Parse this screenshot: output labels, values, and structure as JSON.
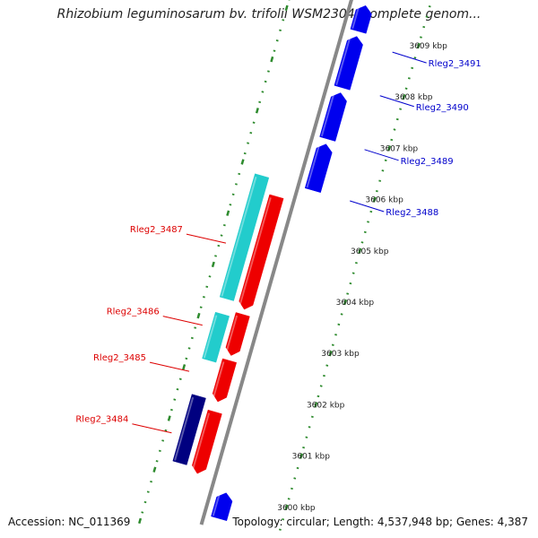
{
  "title": "Rhizobium leguminosarum bv. trifolii WSM2304, complete genom...",
  "accession": "Accession: NC_011369",
  "summary": "Topology: circular; Length: 4,537,948 bp; Genes: 4,387",
  "colors": {
    "backbone": "#888888",
    "tick_dots": "#2e8b2e",
    "forward_gene": "#0000ee",
    "reverse_gene": "#ee0000",
    "cyan_feature": "#22cccc",
    "navy_feature": "#000080",
    "forward_label": "#0000cc",
    "reverse_label": "#dd0000"
  },
  "scale_labels": [
    "3600 kbp",
    "3601 kbp",
    "3602 kbp",
    "3603 kbp",
    "3604 kbp",
    "3605 kbp",
    "3606 kbp",
    "3607 kbp",
    "3608 kbp",
    "3609 kbp"
  ],
  "forward_genes": [
    {
      "name": "Rleg2_3491",
      "start_kbp": 3609.0,
      "end_kbp": 3609.5
    },
    {
      "name": "Rleg2_3490",
      "start_kbp": 3607.9,
      "end_kbp": 3608.9
    },
    {
      "name": "Rleg2_3489",
      "start_kbp": 3606.9,
      "end_kbp": 3607.8
    },
    {
      "name": "Rleg2_3488",
      "start_kbp": 3605.9,
      "end_kbp": 3606.8
    },
    {
      "name": "",
      "start_kbp": 3599.5,
      "end_kbp": 3600.0
    }
  ],
  "reverse_genes": [
    {
      "name": "Rleg2_3487",
      "start_kbp": 3603.4,
      "end_kbp": 3605.6
    },
    {
      "name": "Rleg2_3486",
      "start_kbp": 3602.5,
      "end_kbp": 3603.3
    },
    {
      "name": "Rleg2_3485",
      "start_kbp": 3601.6,
      "end_kbp": 3602.4
    },
    {
      "name": "Rleg2_3484",
      "start_kbp": 3600.2,
      "end_kbp": 3601.4
    }
  ],
  "cyan_features": [
    {
      "start_kbp": 3603.5,
      "end_kbp": 3605.9
    },
    {
      "start_kbp": 3602.3,
      "end_kbp": 3603.2
    }
  ],
  "navy_features": [
    {
      "start_kbp": 3600.3,
      "end_kbp": 3601.6
    }
  ]
}
